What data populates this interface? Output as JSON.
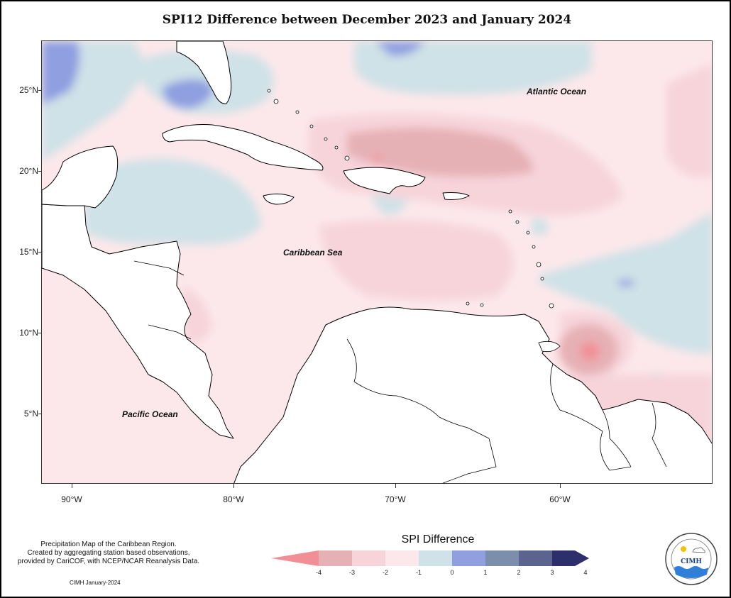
{
  "title": "SPI12 Difference between December 2023 and January 2024",
  "map": {
    "lat_labels": [
      "25°N",
      "20°N",
      "15°N",
      "10°N",
      "5°N"
    ],
    "lon_labels": [
      "90°W",
      "80°W",
      "70°W",
      "60°W"
    ],
    "ocean_labels": {
      "atlantic": "Atlantic Ocean",
      "caribbean": "Caribbean Sea",
      "pacific": "Pacific Ocean"
    }
  },
  "legend": {
    "title": "SPI Difference",
    "ticks": [
      "-4",
      "-3",
      "-2",
      "-1",
      "0",
      "1",
      "2",
      "3",
      "4"
    ],
    "colors": [
      "#f28f96",
      "#e6b1b5",
      "#f6d4da",
      "#fce8eb",
      "#cfe2e7",
      "#8f9fe0",
      "#7b8eab",
      "#5a648e",
      "#2c2f6b"
    ]
  },
  "credit": {
    "line1": "Precipitation Map of the Caribbean Region.",
    "line2": "Created by aggregating station based observations,",
    "line3": "provided by CariCOF, with NCEP/NCAR Reanalysis Data.",
    "date": "CIMH January-2024"
  },
  "logo": {
    "acronym": "CIMH"
  }
}
